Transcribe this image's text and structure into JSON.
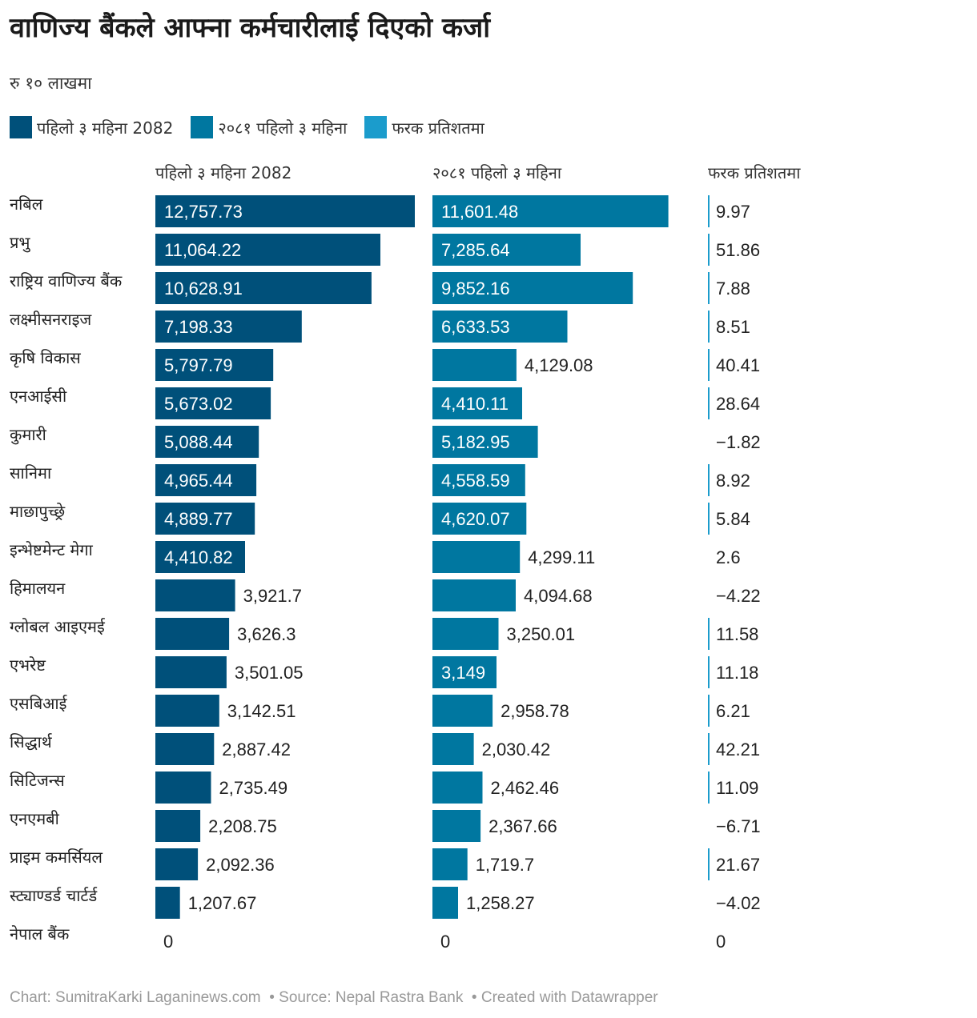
{
  "title": "वाणिज्य बैंकले आफ्ना कर्मचारीलाई दिएको कर्जा",
  "subtitle": "रु १० लाखमा",
  "footer": {
    "chart_by": "Chart: SumitraKarki Laganinews.com",
    "source": "Source: Nepal Rastra Bank",
    "credit": "Created with Datawrapper"
  },
  "colors": {
    "col1": "#00507a",
    "col2": "#0077a0",
    "col3": "#1b9ccc"
  },
  "legend": [
    {
      "label": "पहिलो ३ महिना 2082",
      "color": "#00507a"
    },
    {
      "label": "२०८१ पहिलो ३ महिना",
      "color": "#0077a0"
    },
    {
      "label": "फरक प्रतिशतमा",
      "color": "#1b9ccc"
    }
  ],
  "chart_data": {
    "type": "bar",
    "columns": [
      "पहिलो ३ महिना 2082",
      "२०८१ पहिलो ३ महिना",
      "फरक प्रतिशतमा"
    ],
    "categories": [
      "नबिल",
      "प्रभु",
      "राष्ट्रिय वाणिज्य बैंक",
      "लक्ष्मीसनराइज",
      "कृषि विकास",
      "एनआईसी",
      "कुमारी",
      "सानिमा",
      "माछापुच्छ्रे",
      "इन्भेष्टमेन्ट मेगा",
      "हिमालयन",
      "ग्लोबल आइएमई",
      "एभरेष्ट",
      "एसबिआई",
      "सिद्धार्थ",
      "सिटिजन्स",
      "एनएमबी",
      "प्राइम कमर्सियल",
      "स्ट्याण्डर्ड चार्टर्ड",
      "नेपाल बैंक"
    ],
    "series": [
      {
        "name": "पहिलो ३ महिना 2082",
        "values": [
          12757.73,
          11064.22,
          10628.91,
          7198.33,
          5797.79,
          5673.02,
          5088.44,
          4965.44,
          4889.77,
          4410.82,
          3921.7,
          3626.3,
          3501.05,
          3142.51,
          2887.42,
          2735.49,
          2208.75,
          2092.36,
          1207.67,
          0
        ],
        "labels": [
          "12,757.73",
          "11,064.22",
          "10,628.91",
          "7,198.33",
          "5,797.79",
          "5,673.02",
          "5,088.44",
          "4,965.44",
          "4,889.77",
          "4,410.82",
          "3,921.7",
          "3,626.3",
          "3,501.05",
          "3,142.51",
          "2,887.42",
          "2,735.49",
          "2,208.75",
          "2,092.36",
          "1,207.67",
          "0"
        ]
      },
      {
        "name": "२०८१ पहिलो ३ महिना",
        "values": [
          11601.48,
          7285.64,
          9852.16,
          6633.53,
          4129.08,
          4410.11,
          5182.95,
          4558.59,
          4620.07,
          4299.11,
          4094.68,
          3250.01,
          3149,
          2958.78,
          2030.42,
          2462.46,
          2367.66,
          1719.7,
          1258.27,
          0
        ],
        "labels": [
          "11,601.48",
          "7,285.64",
          "9,852.16",
          "6,633.53",
          "4,129.08",
          "4,410.11",
          "5,182.95",
          "4,558.59",
          "4,620.07",
          "4,299.11",
          "4,094.68",
          "3,250.01",
          "3,149",
          "2,958.78",
          "2,030.42",
          "2,462.46",
          "2,367.66",
          "1,719.7",
          "1,258.27",
          "0"
        ]
      },
      {
        "name": "फरक प्रतिशतमा",
        "values": [
          9.97,
          51.86,
          7.88,
          8.51,
          40.41,
          28.64,
          -1.82,
          8.92,
          5.84,
          2.6,
          -4.22,
          11.58,
          11.18,
          6.21,
          42.21,
          11.09,
          -6.71,
          21.67,
          -4.02,
          0
        ],
        "labels": [
          "9.97",
          "51.86",
          "7.88",
          "8.51",
          "40.41",
          "28.64",
          "−1.82",
          "8.92",
          "5.84",
          "2.6",
          "−4.22",
          "11.58",
          "11.18",
          "6.21",
          "42.21",
          "11.09",
          "−6.71",
          "21.67",
          "−4.02",
          "0"
        ]
      }
    ]
  }
}
